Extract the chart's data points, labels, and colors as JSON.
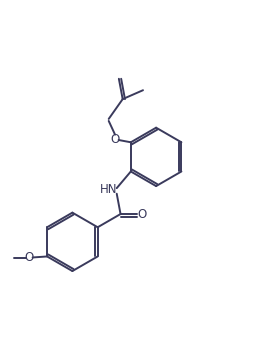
{
  "bg_color": "#ffffff",
  "line_color": "#3a3a5c",
  "line_width": 1.4,
  "font_size": 8.5,
  "figsize": [
    2.54,
    3.44
  ],
  "dpi": 100,
  "xlim": [
    0,
    10
  ],
  "ylim": [
    0,
    13.5
  ]
}
